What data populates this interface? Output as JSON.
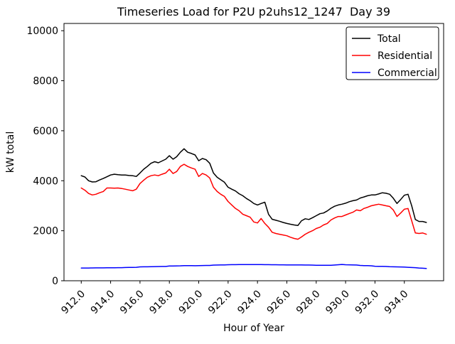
{
  "chart": {
    "title": "Timeseries Load for P2U p2uhs12_1247  Day 39",
    "xlabel": "Hour of Year",
    "ylabel": "kW total"
  },
  "chart_data": {
    "type": "line",
    "title": "Timeseries Load for P2U p2uhs12_1247  Day 39",
    "xlabel": "Hour of Year",
    "ylabel": "kW total",
    "grid": false,
    "legend_position": "upper right",
    "xlim": [
      910.825,
      936.675
    ],
    "ylim": [
      0,
      10290
    ],
    "x_ticks": [
      912,
      914,
      916,
      918,
      920,
      922,
      924,
      926,
      928,
      930,
      932,
      934
    ],
    "x_tick_labels": [
      "912.0",
      "914.0",
      "916.0",
      "918.0",
      "920.0",
      "922.0",
      "924.0",
      "926.0",
      "928.0",
      "930.0",
      "932.0",
      "934.0"
    ],
    "y_ticks": [
      0,
      2000,
      4000,
      6000,
      8000,
      10000
    ],
    "y_tick_labels": [
      "0",
      "2000",
      "4000",
      "6000",
      "8000",
      "10000"
    ],
    "x": [
      912.0,
      912.25,
      912.5,
      912.75,
      913.0,
      913.25,
      913.5,
      913.75,
      914.0,
      914.25,
      914.5,
      914.75,
      915.0,
      915.25,
      915.5,
      915.75,
      916.0,
      916.25,
      916.5,
      916.75,
      917.0,
      917.25,
      917.5,
      917.75,
      918.0,
      918.25,
      918.5,
      918.75,
      919.0,
      919.25,
      919.5,
      919.75,
      920.0,
      920.25,
      920.5,
      920.75,
      921.0,
      921.25,
      921.5,
      921.75,
      922.0,
      922.25,
      922.5,
      922.75,
      923.0,
      923.25,
      923.5,
      923.75,
      924.0,
      924.25,
      924.5,
      924.75,
      925.0,
      925.25,
      925.5,
      925.75,
      926.0,
      926.25,
      926.5,
      926.75,
      927.0,
      927.25,
      927.5,
      927.75,
      928.0,
      928.25,
      928.5,
      928.75,
      929.0,
      929.25,
      929.5,
      929.75,
      930.0,
      930.25,
      930.5,
      930.75,
      931.0,
      931.25,
      931.5,
      931.75,
      932.0,
      932.25,
      932.5,
      932.75,
      933.0,
      933.25,
      933.5,
      933.75,
      934.0,
      934.25,
      934.5,
      934.75,
      935.0,
      935.25,
      935.5
    ],
    "series": [
      {
        "name": "Total",
        "color": "#000000",
        "values": [
          4200,
          4150,
          4000,
          3950,
          3960,
          4030,
          4090,
          4160,
          4230,
          4260,
          4240,
          4230,
          4230,
          4210,
          4200,
          4170,
          4310,
          4460,
          4570,
          4700,
          4760,
          4720,
          4790,
          4860,
          5000,
          4860,
          4960,
          5140,
          5280,
          5140,
          5090,
          5030,
          4800,
          4890,
          4840,
          4700,
          4310,
          4140,
          4040,
          3940,
          3740,
          3660,
          3590,
          3480,
          3400,
          3290,
          3200,
          3090,
          3030,
          3090,
          3140,
          2660,
          2460,
          2420,
          2380,
          2330,
          2290,
          2260,
          2230,
          2210,
          2400,
          2480,
          2450,
          2520,
          2600,
          2680,
          2710,
          2790,
          2900,
          2980,
          3030,
          3060,
          3100,
          3160,
          3200,
          3230,
          3310,
          3350,
          3400,
          3430,
          3430,
          3470,
          3520,
          3500,
          3460,
          3300,
          3090,
          3250,
          3420,
          3460,
          3000,
          2450,
          2370,
          2370,
          2330
        ]
      },
      {
        "name": "Residential",
        "color": "#ff0000",
        "values": [
          3710,
          3620,
          3490,
          3430,
          3460,
          3520,
          3570,
          3710,
          3710,
          3700,
          3710,
          3690,
          3660,
          3630,
          3600,
          3660,
          3890,
          4020,
          4140,
          4200,
          4230,
          4200,
          4260,
          4310,
          4460,
          4290,
          4370,
          4570,
          4660,
          4570,
          4510,
          4460,
          4170,
          4290,
          4230,
          4110,
          3740,
          3570,
          3460,
          3370,
          3170,
          3030,
          2890,
          2800,
          2660,
          2600,
          2540,
          2350,
          2310,
          2490,
          2290,
          2140,
          1940,
          1890,
          1860,
          1830,
          1800,
          1740,
          1690,
          1660,
          1750,
          1860,
          1940,
          2000,
          2090,
          2140,
          2230,
          2290,
          2430,
          2510,
          2570,
          2570,
          2630,
          2690,
          2740,
          2830,
          2800,
          2890,
          2940,
          3000,
          3030,
          3060,
          3030,
          3000,
          2970,
          2830,
          2570,
          2710,
          2860,
          2890,
          2400,
          1910,
          1890,
          1910,
          1860
        ]
      },
      {
        "name": "Commercial",
        "color": "#0000ff",
        "values": [
          510,
          510,
          510,
          512,
          515,
          515,
          515,
          518,
          520,
          521,
          523,
          524,
          530,
          532,
          535,
          538,
          555,
          556,
          558,
          559,
          565,
          568,
          570,
          572,
          590,
          592,
          595,
          598,
          605,
          604,
          602,
          601,
          605,
          608,
          610,
          612,
          625,
          628,
          630,
          632,
          640,
          641,
          642,
          644,
          645,
          645,
          645,
          645,
          645,
          644,
          642,
          641,
          640,
          639,
          638,
          636,
          635,
          635,
          635,
          635,
          630,
          629,
          627,
          626,
          620,
          619,
          617,
          616,
          620,
          628,
          640,
          650,
          640,
          636,
          632,
          628,
          610,
          606,
          602,
          598,
          580,
          577,
          575,
          572,
          560,
          557,
          555,
          552,
          545,
          538,
          530,
          522,
          510,
          500,
          490
        ]
      }
    ]
  }
}
